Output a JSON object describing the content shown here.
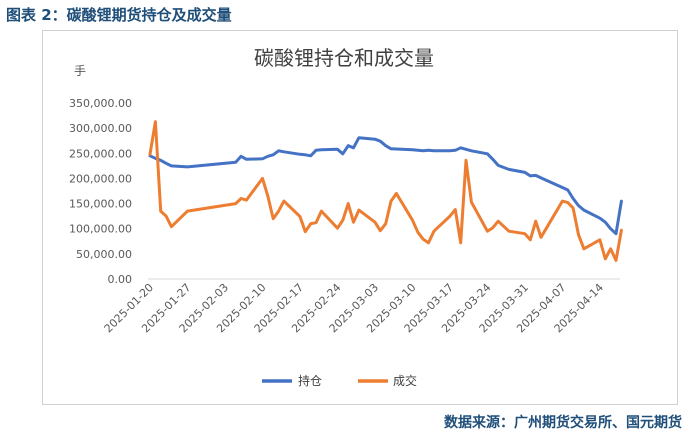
{
  "caption": "图表 2：碳酸锂期货持仓及成交量",
  "source": "数据来源：广州期货交易所、国元期货",
  "chart_data": {
    "type": "line",
    "title": "碳酸锂持仓和成交量",
    "yunit": "手",
    "ylim": [
      0,
      350000
    ],
    "yticks": [
      "0.00",
      "50,000.00",
      "100,000.00",
      "150,000.00",
      "200,000.00",
      "250,000.00",
      "300,000.00",
      "350,000.00"
    ],
    "xticks": [
      "2025-01-20",
      "2025-01-27",
      "2025-02-03",
      "2025-02-10",
      "2025-02-17",
      "2025-02-24",
      "2025-03-03",
      "2025-03-10",
      "2025-03-17",
      "2025-03-24",
      "2025-03-31",
      "2025-04-07",
      "2025-04-14"
    ],
    "xrange": [
      "2025-01-20",
      "2025-04-17"
    ],
    "legend_position": "bottom",
    "series": [
      {
        "name": "持仓",
        "color": "#4472c4",
        "points": [
          [
            "2025-01-20",
            245000
          ],
          [
            "2025-01-21",
            240000
          ],
          [
            "2025-01-22",
            236000
          ],
          [
            "2025-01-23",
            230000
          ],
          [
            "2025-01-24",
            225000
          ],
          [
            "2025-01-27",
            223000
          ],
          [
            "2025-02-05",
            232000
          ],
          [
            "2025-02-06",
            244000
          ],
          [
            "2025-02-07",
            238000
          ],
          [
            "2025-02-10",
            239000
          ],
          [
            "2025-02-11",
            244000
          ],
          [
            "2025-02-12",
            247000
          ],
          [
            "2025-02-13",
            255000
          ],
          [
            "2025-02-14",
            253000
          ],
          [
            "2025-02-17",
            248000
          ],
          [
            "2025-02-18",
            247000
          ],
          [
            "2025-02-19",
            245000
          ],
          [
            "2025-02-20",
            256000
          ],
          [
            "2025-02-21",
            257000
          ],
          [
            "2025-02-24",
            258000
          ],
          [
            "2025-02-25",
            249000
          ],
          [
            "2025-02-26",
            265000
          ],
          [
            "2025-02-27",
            261000
          ],
          [
            "2025-02-28",
            281000
          ],
          [
            "2025-03-03",
            278000
          ],
          [
            "2025-03-04",
            274000
          ],
          [
            "2025-03-05",
            265000
          ],
          [
            "2025-03-06",
            259000
          ],
          [
            "2025-03-10",
            257000
          ],
          [
            "2025-03-11",
            256000
          ],
          [
            "2025-03-12",
            255000
          ],
          [
            "2025-03-13",
            256000
          ],
          [
            "2025-03-14",
            255000
          ],
          [
            "2025-03-17",
            255000
          ],
          [
            "2025-03-18",
            256000
          ],
          [
            "2025-03-19",
            261000
          ],
          [
            "2025-03-20",
            258000
          ],
          [
            "2025-03-21",
            255000
          ],
          [
            "2025-03-24",
            249000
          ],
          [
            "2025-03-25",
            238000
          ],
          [
            "2025-03-26",
            226000
          ],
          [
            "2025-03-27",
            222000
          ],
          [
            "2025-03-28",
            218000
          ],
          [
            "2025-03-31",
            212000
          ],
          [
            "2025-04-01",
            205000
          ],
          [
            "2025-04-02",
            206000
          ],
          [
            "2025-04-03",
            201000
          ],
          [
            "2025-04-07",
            182000
          ],
          [
            "2025-04-08",
            177000
          ],
          [
            "2025-04-09",
            160000
          ],
          [
            "2025-04-10",
            146000
          ],
          [
            "2025-04-11",
            137000
          ],
          [
            "2025-04-14",
            121000
          ],
          [
            "2025-04-15",
            113000
          ],
          [
            "2025-04-16",
            100000
          ],
          [
            "2025-04-17",
            90000
          ],
          [
            "2025-04-18",
            155000
          ]
        ]
      },
      {
        "name": "成交",
        "color": "#ed7d31",
        "points": [
          [
            "2025-01-20",
            248000
          ],
          [
            "2025-01-21",
            313000
          ],
          [
            "2025-01-22",
            135000
          ],
          [
            "2025-01-23",
            125000
          ],
          [
            "2025-01-24",
            104000
          ],
          [
            "2025-01-27",
            135000
          ],
          [
            "2025-02-05",
            150000
          ],
          [
            "2025-02-06",
            160000
          ],
          [
            "2025-02-07",
            157000
          ],
          [
            "2025-02-10",
            200000
          ],
          [
            "2025-02-11",
            165000
          ],
          [
            "2025-02-12",
            120000
          ],
          [
            "2025-02-13",
            135000
          ],
          [
            "2025-02-14",
            155000
          ],
          [
            "2025-02-17",
            124000
          ],
          [
            "2025-02-18",
            94000
          ],
          [
            "2025-02-19",
            110000
          ],
          [
            "2025-02-20",
            112000
          ],
          [
            "2025-02-21",
            135000
          ],
          [
            "2025-02-24",
            101000
          ],
          [
            "2025-02-25",
            117000
          ],
          [
            "2025-02-26",
            150000
          ],
          [
            "2025-02-27",
            113000
          ],
          [
            "2025-02-28",
            137000
          ],
          [
            "2025-03-03",
            113000
          ],
          [
            "2025-03-04",
            96000
          ],
          [
            "2025-03-05",
            110000
          ],
          [
            "2025-03-06",
            155000
          ],
          [
            "2025-03-07",
            170000
          ],
          [
            "2025-03-10",
            117000
          ],
          [
            "2025-03-11",
            93000
          ],
          [
            "2025-03-12",
            79000
          ],
          [
            "2025-03-13",
            72000
          ],
          [
            "2025-03-14",
            95000
          ],
          [
            "2025-03-17",
            125000
          ],
          [
            "2025-03-18",
            138000
          ],
          [
            "2025-03-19",
            72000
          ],
          [
            "2025-03-20",
            236000
          ],
          [
            "2025-03-21",
            153000
          ],
          [
            "2025-03-24",
            95000
          ],
          [
            "2025-03-25",
            102000
          ],
          [
            "2025-03-26",
            115000
          ],
          [
            "2025-03-27",
            105000
          ],
          [
            "2025-03-28",
            95000
          ],
          [
            "2025-03-31",
            90000
          ],
          [
            "2025-04-01",
            78000
          ],
          [
            "2025-04-02",
            115000
          ],
          [
            "2025-04-03",
            83000
          ],
          [
            "2025-04-07",
            155000
          ],
          [
            "2025-04-08",
            152000
          ],
          [
            "2025-04-09",
            141000
          ],
          [
            "2025-04-10",
            88000
          ],
          [
            "2025-04-11",
            60000
          ],
          [
            "2025-04-14",
            78000
          ],
          [
            "2025-04-15",
            40000
          ],
          [
            "2025-04-16",
            60000
          ],
          [
            "2025-04-17",
            37000
          ],
          [
            "2025-04-18",
            97000
          ]
        ]
      }
    ]
  }
}
